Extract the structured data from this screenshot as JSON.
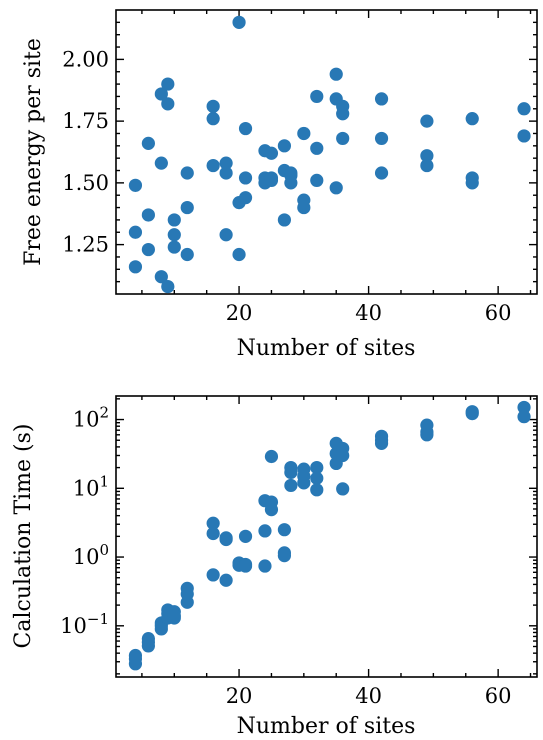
{
  "marker_color": "#2878b5",
  "chart_data": [
    {
      "type": "scatter",
      "xlabel": "Number of sites",
      "ylabel": "Free energy per site",
      "xlim": [
        1,
        66
      ],
      "ylim": [
        1.05,
        2.2
      ],
      "yscale": "linear",
      "grid": false,
      "x_ticks": [
        20,
        40,
        60
      ],
      "x_tick_labels": [
        "20",
        "40",
        "60"
      ],
      "y_ticks": [
        1.25,
        1.5,
        1.75,
        2.0
      ],
      "y_tick_labels": [
        "1.25",
        "1.50",
        "1.75",
        "2.00"
      ],
      "points": [
        {
          "x": 4,
          "y": 1.49
        },
        {
          "x": 4,
          "y": 1.3
        },
        {
          "x": 4,
          "y": 1.16
        },
        {
          "x": 6,
          "y": 1.66
        },
        {
          "x": 6,
          "y": 1.37
        },
        {
          "x": 6,
          "y": 1.23
        },
        {
          "x": 8,
          "y": 1.86
        },
        {
          "x": 8,
          "y": 1.58
        },
        {
          "x": 8,
          "y": 1.12
        },
        {
          "x": 9,
          "y": 1.9
        },
        {
          "x": 9,
          "y": 1.82
        },
        {
          "x": 9,
          "y": 1.08
        },
        {
          "x": 10,
          "y": 1.35
        },
        {
          "x": 10,
          "y": 1.29
        },
        {
          "x": 10,
          "y": 1.24
        },
        {
          "x": 12,
          "y": 1.54
        },
        {
          "x": 12,
          "y": 1.4
        },
        {
          "x": 12,
          "y": 1.21
        },
        {
          "x": 16,
          "y": 1.81
        },
        {
          "x": 16,
          "y": 1.76
        },
        {
          "x": 16,
          "y": 1.57
        },
        {
          "x": 18,
          "y": 1.58
        },
        {
          "x": 18,
          "y": 1.54
        },
        {
          "x": 18,
          "y": 1.29
        },
        {
          "x": 20,
          "y": 2.15
        },
        {
          "x": 20,
          "y": 1.42
        },
        {
          "x": 20,
          "y": 1.21
        },
        {
          "x": 21,
          "y": 1.72
        },
        {
          "x": 21,
          "y": 1.52
        },
        {
          "x": 21,
          "y": 1.44
        },
        {
          "x": 24,
          "y": 1.63
        },
        {
          "x": 24,
          "y": 1.52
        },
        {
          "x": 24,
          "y": 1.5
        },
        {
          "x": 25,
          "y": 1.62
        },
        {
          "x": 25,
          "y": 1.52
        },
        {
          "x": 25,
          "y": 1.51
        },
        {
          "x": 27,
          "y": 1.65
        },
        {
          "x": 27,
          "y": 1.55
        },
        {
          "x": 27,
          "y": 1.35
        },
        {
          "x": 28,
          "y": 1.54
        },
        {
          "x": 28,
          "y": 1.53
        },
        {
          "x": 28,
          "y": 1.5
        },
        {
          "x": 30,
          "y": 1.7
        },
        {
          "x": 30,
          "y": 1.43
        },
        {
          "x": 30,
          "y": 1.4
        },
        {
          "x": 32,
          "y": 1.85
        },
        {
          "x": 32,
          "y": 1.64
        },
        {
          "x": 32,
          "y": 1.51
        },
        {
          "x": 35,
          "y": 1.94
        },
        {
          "x": 35,
          "y": 1.84
        },
        {
          "x": 35,
          "y": 1.48
        },
        {
          "x": 36,
          "y": 1.81
        },
        {
          "x": 36,
          "y": 1.78
        },
        {
          "x": 36,
          "y": 1.68
        },
        {
          "x": 42,
          "y": 1.84
        },
        {
          "x": 42,
          "y": 1.68
        },
        {
          "x": 42,
          "y": 1.54
        },
        {
          "x": 49,
          "y": 1.75
        },
        {
          "x": 49,
          "y": 1.61
        },
        {
          "x": 49,
          "y": 1.57
        },
        {
          "x": 56,
          "y": 1.76
        },
        {
          "x": 56,
          "y": 1.52
        },
        {
          "x": 56,
          "y": 1.5
        },
        {
          "x": 64,
          "y": 1.8
        },
        {
          "x": 64,
          "y": 1.69
        }
      ]
    },
    {
      "type": "scatter",
      "xlabel": "Number of sites",
      "ylabel": "Calculation Time (s)",
      "xlim": [
        1,
        66
      ],
      "ylim": [
        0.018,
        220
      ],
      "yscale": "log",
      "grid": false,
      "x_ticks": [
        20,
        40,
        60
      ],
      "x_tick_labels": [
        "20",
        "40",
        "60"
      ],
      "y_ticks": [
        0.1,
        1,
        10,
        100
      ],
      "y_tick_labels": [
        {
          "base": "10",
          "exp": "−1"
        },
        {
          "base": "10",
          "exp": "0"
        },
        {
          "base": "10",
          "exp": "1"
        },
        {
          "base": "10",
          "exp": "2"
        }
      ],
      "points": [
        {
          "x": 4,
          "y": 0.037
        },
        {
          "x": 4,
          "y": 0.033
        },
        {
          "x": 4,
          "y": 0.028
        },
        {
          "x": 6,
          "y": 0.065
        },
        {
          "x": 6,
          "y": 0.058
        },
        {
          "x": 6,
          "y": 0.051
        },
        {
          "x": 8,
          "y": 0.11
        },
        {
          "x": 8,
          "y": 0.1
        },
        {
          "x": 8,
          "y": 0.09
        },
        {
          "x": 9,
          "y": 0.17
        },
        {
          "x": 9,
          "y": 0.15
        },
        {
          "x": 9,
          "y": 0.13
        },
        {
          "x": 10,
          "y": 0.16
        },
        {
          "x": 10,
          "y": 0.14
        },
        {
          "x": 10,
          "y": 0.13
        },
        {
          "x": 12,
          "y": 0.35
        },
        {
          "x": 12,
          "y": 0.29
        },
        {
          "x": 12,
          "y": 0.22
        },
        {
          "x": 16,
          "y": 3.1
        },
        {
          "x": 16,
          "y": 2.2
        },
        {
          "x": 16,
          "y": 0.55
        },
        {
          "x": 18,
          "y": 1.9
        },
        {
          "x": 18,
          "y": 1.8
        },
        {
          "x": 18,
          "y": 0.46
        },
        {
          "x": 20,
          "y": 0.82
        },
        {
          "x": 20,
          "y": 0.76
        },
        {
          "x": 21,
          "y": 2.0
        },
        {
          "x": 21,
          "y": 0.78
        },
        {
          "x": 21,
          "y": 0.74
        },
        {
          "x": 24,
          "y": 6.6
        },
        {
          "x": 24,
          "y": 2.4
        },
        {
          "x": 24,
          "y": 0.74
        },
        {
          "x": 25,
          "y": 29
        },
        {
          "x": 25,
          "y": 6.3
        },
        {
          "x": 25,
          "y": 4.9
        },
        {
          "x": 27,
          "y": 2.5
        },
        {
          "x": 27,
          "y": 1.15
        },
        {
          "x": 27,
          "y": 1.05
        },
        {
          "x": 28,
          "y": 20
        },
        {
          "x": 28,
          "y": 17
        },
        {
          "x": 28,
          "y": 11
        },
        {
          "x": 30,
          "y": 19
        },
        {
          "x": 30,
          "y": 15
        },
        {
          "x": 30,
          "y": 12
        },
        {
          "x": 32,
          "y": 20
        },
        {
          "x": 32,
          "y": 14
        },
        {
          "x": 32,
          "y": 9.5
        },
        {
          "x": 35,
          "y": 45
        },
        {
          "x": 35,
          "y": 32
        },
        {
          "x": 35,
          "y": 23
        },
        {
          "x": 36,
          "y": 38
        },
        {
          "x": 36,
          "y": 30
        },
        {
          "x": 36,
          "y": 9.8
        },
        {
          "x": 42,
          "y": 57
        },
        {
          "x": 42,
          "y": 50
        },
        {
          "x": 42,
          "y": 45
        },
        {
          "x": 49,
          "y": 83
        },
        {
          "x": 49,
          "y": 66
        },
        {
          "x": 49,
          "y": 60
        },
        {
          "x": 56,
          "y": 130
        },
        {
          "x": 56,
          "y": 122
        },
        {
          "x": 64,
          "y": 150
        },
        {
          "x": 64,
          "y": 110
        }
      ]
    }
  ]
}
